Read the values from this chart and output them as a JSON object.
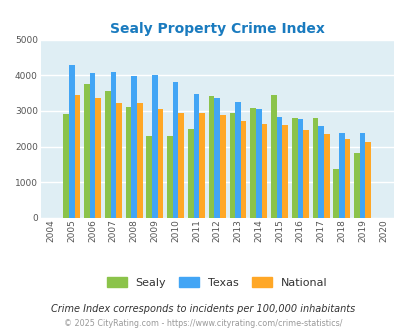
{
  "title": "Sealy Property Crime Index",
  "years": [
    2004,
    2005,
    2006,
    2007,
    2008,
    2009,
    2010,
    2011,
    2012,
    2013,
    2014,
    2015,
    2016,
    2017,
    2018,
    2019,
    2020
  ],
  "sealy": [
    0,
    2900,
    3750,
    3550,
    3100,
    2300,
    2300,
    2480,
    3430,
    2930,
    3080,
    3450,
    2800,
    2800,
    1380,
    1830,
    0
  ],
  "texas": [
    0,
    4300,
    4070,
    4090,
    3980,
    4020,
    3800,
    3480,
    3360,
    3250,
    3040,
    2830,
    2760,
    2570,
    2380,
    2380,
    0
  ],
  "national": [
    0,
    3450,
    3350,
    3230,
    3210,
    3050,
    2950,
    2940,
    2880,
    2730,
    2630,
    2590,
    2460,
    2360,
    2200,
    2120,
    0
  ],
  "sealy_color": "#8BC34A",
  "texas_color": "#42A5F5",
  "national_color": "#FFA726",
  "bg_color": "#DFEEf4",
  "ylim": [
    0,
    5000
  ],
  "yticks": [
    0,
    1000,
    2000,
    3000,
    4000,
    5000
  ],
  "bar_width": 0.27,
  "subtitle": "Crime Index corresponds to incidents per 100,000 inhabitants",
  "footer": "© 2025 CityRating.com - https://www.cityrating.com/crime-statistics/",
  "legend_labels": [
    "Sealy",
    "Texas",
    "National"
  ],
  "active_years": [
    2005,
    2006,
    2007,
    2008,
    2009,
    2010,
    2011,
    2012,
    2013,
    2014,
    2015,
    2016,
    2017,
    2018,
    2019
  ]
}
